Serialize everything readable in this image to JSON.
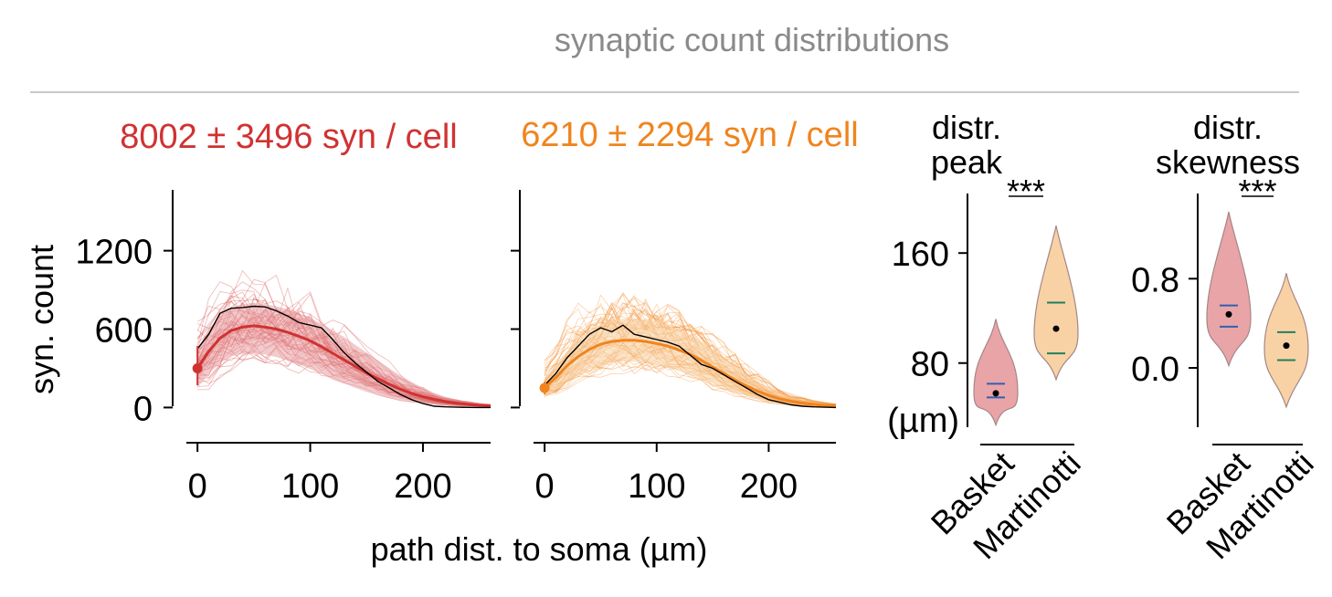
{
  "header": {
    "title": "synaptic count distributions",
    "title_color": "#8a8a8a",
    "rule_color": "#c8c8c8"
  },
  "colors": {
    "basket": "#d03232",
    "basket_fill": "#e8a0a4",
    "martinotti": "#f0841e",
    "martinotti_fill": "#f8d0a0",
    "example_trace": "#000000",
    "mean_marker": "#3060b0",
    "median_marker": "#208060"
  },
  "chart_data": [
    {
      "type": "line",
      "panel": "basket-profile",
      "title": "8002 ± 3496 syn / cell",
      "xlabel": "path dist. to soma (µm)",
      "ylabel": "syn. count",
      "xlim": [
        -5,
        260
      ],
      "ylim": [
        -60,
        1400
      ],
      "xticks": [
        "0",
        "100",
        "200"
      ],
      "yticks": [
        "0",
        "600",
        "1200"
      ],
      "x": [
        0,
        10,
        20,
        30,
        40,
        50,
        60,
        70,
        80,
        90,
        100,
        110,
        120,
        130,
        140,
        150,
        160,
        170,
        180,
        190,
        200,
        210,
        220,
        230,
        240,
        250,
        260
      ],
      "mean": [
        300,
        430,
        530,
        590,
        615,
        625,
        615,
        600,
        575,
        545,
        510,
        465,
        415,
        365,
        315,
        265,
        220,
        178,
        140,
        108,
        82,
        62,
        45,
        33,
        24,
        17,
        12
      ],
      "band_low": [
        150,
        260,
        340,
        390,
        410,
        415,
        405,
        385,
        360,
        330,
        295,
        260,
        220,
        185,
        150,
        120,
        95,
        72,
        54,
        40,
        28,
        20,
        13,
        8,
        5,
        3,
        2
      ],
      "band_high": [
        450,
        600,
        700,
        760,
        790,
        800,
        790,
        775,
        750,
        720,
        685,
        640,
        590,
        540,
        480,
        420,
        360,
        300,
        245,
        195,
        150,
        112,
        82,
        60,
        45,
        33,
        24
      ],
      "example_trace": [
        450,
        560,
        720,
        760,
        765,
        775,
        770,
        740,
        700,
        650,
        630,
        610,
        520,
        420,
        340,
        270,
        200,
        150,
        100,
        60,
        30,
        10,
        5,
        2,
        1,
        0,
        0
      ],
      "soma_point": {
        "x": 0,
        "y": 300,
        "err_low": 170,
        "err_high": 470
      }
    },
    {
      "type": "line",
      "panel": "martinotti-profile",
      "title": "6210 ± 2294 syn / cell",
      "xlabel": "path dist. to soma (µm)",
      "xlim": [
        -5,
        260
      ],
      "ylim": [
        -60,
        1400
      ],
      "xticks": [
        "0",
        "100",
        "200"
      ],
      "x": [
        0,
        10,
        20,
        30,
        40,
        50,
        60,
        70,
        80,
        90,
        100,
        110,
        120,
        130,
        140,
        150,
        160,
        170,
        180,
        190,
        200,
        210,
        220,
        230,
        240,
        250,
        260
      ],
      "mean": [
        150,
        230,
        320,
        390,
        445,
        485,
        505,
        515,
        515,
        505,
        490,
        470,
        440,
        405,
        360,
        310,
        260,
        210,
        165,
        125,
        92,
        66,
        48,
        34,
        24,
        17,
        12
      ],
      "band_low": [
        80,
        140,
        200,
        250,
        295,
        325,
        345,
        350,
        350,
        340,
        325,
        305,
        280,
        255,
        220,
        185,
        150,
        118,
        90,
        66,
        46,
        32,
        22,
        15,
        10,
        6,
        4
      ],
      "band_high": [
        220,
        320,
        430,
        520,
        590,
        640,
        670,
        680,
        680,
        670,
        655,
        630,
        600,
        560,
        505,
        445,
        380,
        315,
        255,
        200,
        150,
        112,
        82,
        60,
        45,
        33,
        24
      ],
      "example_trace": [
        170,
        260,
        380,
        470,
        560,
        610,
        580,
        630,
        560,
        540,
        520,
        500,
        470,
        400,
        330,
        300,
        250,
        200,
        150,
        100,
        60,
        40,
        20,
        10,
        5,
        2,
        0
      ],
      "soma_point": {
        "x": 0,
        "y": 150,
        "err_low": 100,
        "err_high": 200
      }
    },
    {
      "type": "violin",
      "panel": "distr-peak",
      "title_lines": [
        "distr.",
        "peak"
      ],
      "unit_label": "(µm)",
      "ylim": [
        40,
        190
      ],
      "yticks": [
        "80",
        "160"
      ],
      "significance": "***",
      "categories": [
        "Basket",
        "Martinotti"
      ],
      "groups": [
        {
          "name": "Basket",
          "min": 35,
          "max": 112,
          "mean": 58,
          "median": 65,
          "q_low": 55,
          "p_mean": 61
        },
        {
          "name": "Martinotti",
          "min": 68,
          "max": 180,
          "mean": 105,
          "median": 124,
          "q_low": 87,
          "p_mean": 105
        }
      ]
    },
    {
      "type": "violin",
      "panel": "distr-skewness",
      "title_lines": [
        "distr.",
        "skewness"
      ],
      "ylim": [
        -0.45,
        1.4
      ],
      "yticks": [
        "0.0",
        "0.8"
      ],
      "significance": "***",
      "categories": [
        "Basket",
        "Martinotti"
      ],
      "groups": [
        {
          "name": "Basket",
          "min": 0.02,
          "max": 1.4,
          "mean": 0.48,
          "median": 0.56,
          "q_low": 0.37
        },
        {
          "name": "Martinotti",
          "min": -0.35,
          "max": 0.85,
          "mean": 0.2,
          "median": 0.32,
          "q_low": 0.07
        }
      ]
    }
  ]
}
